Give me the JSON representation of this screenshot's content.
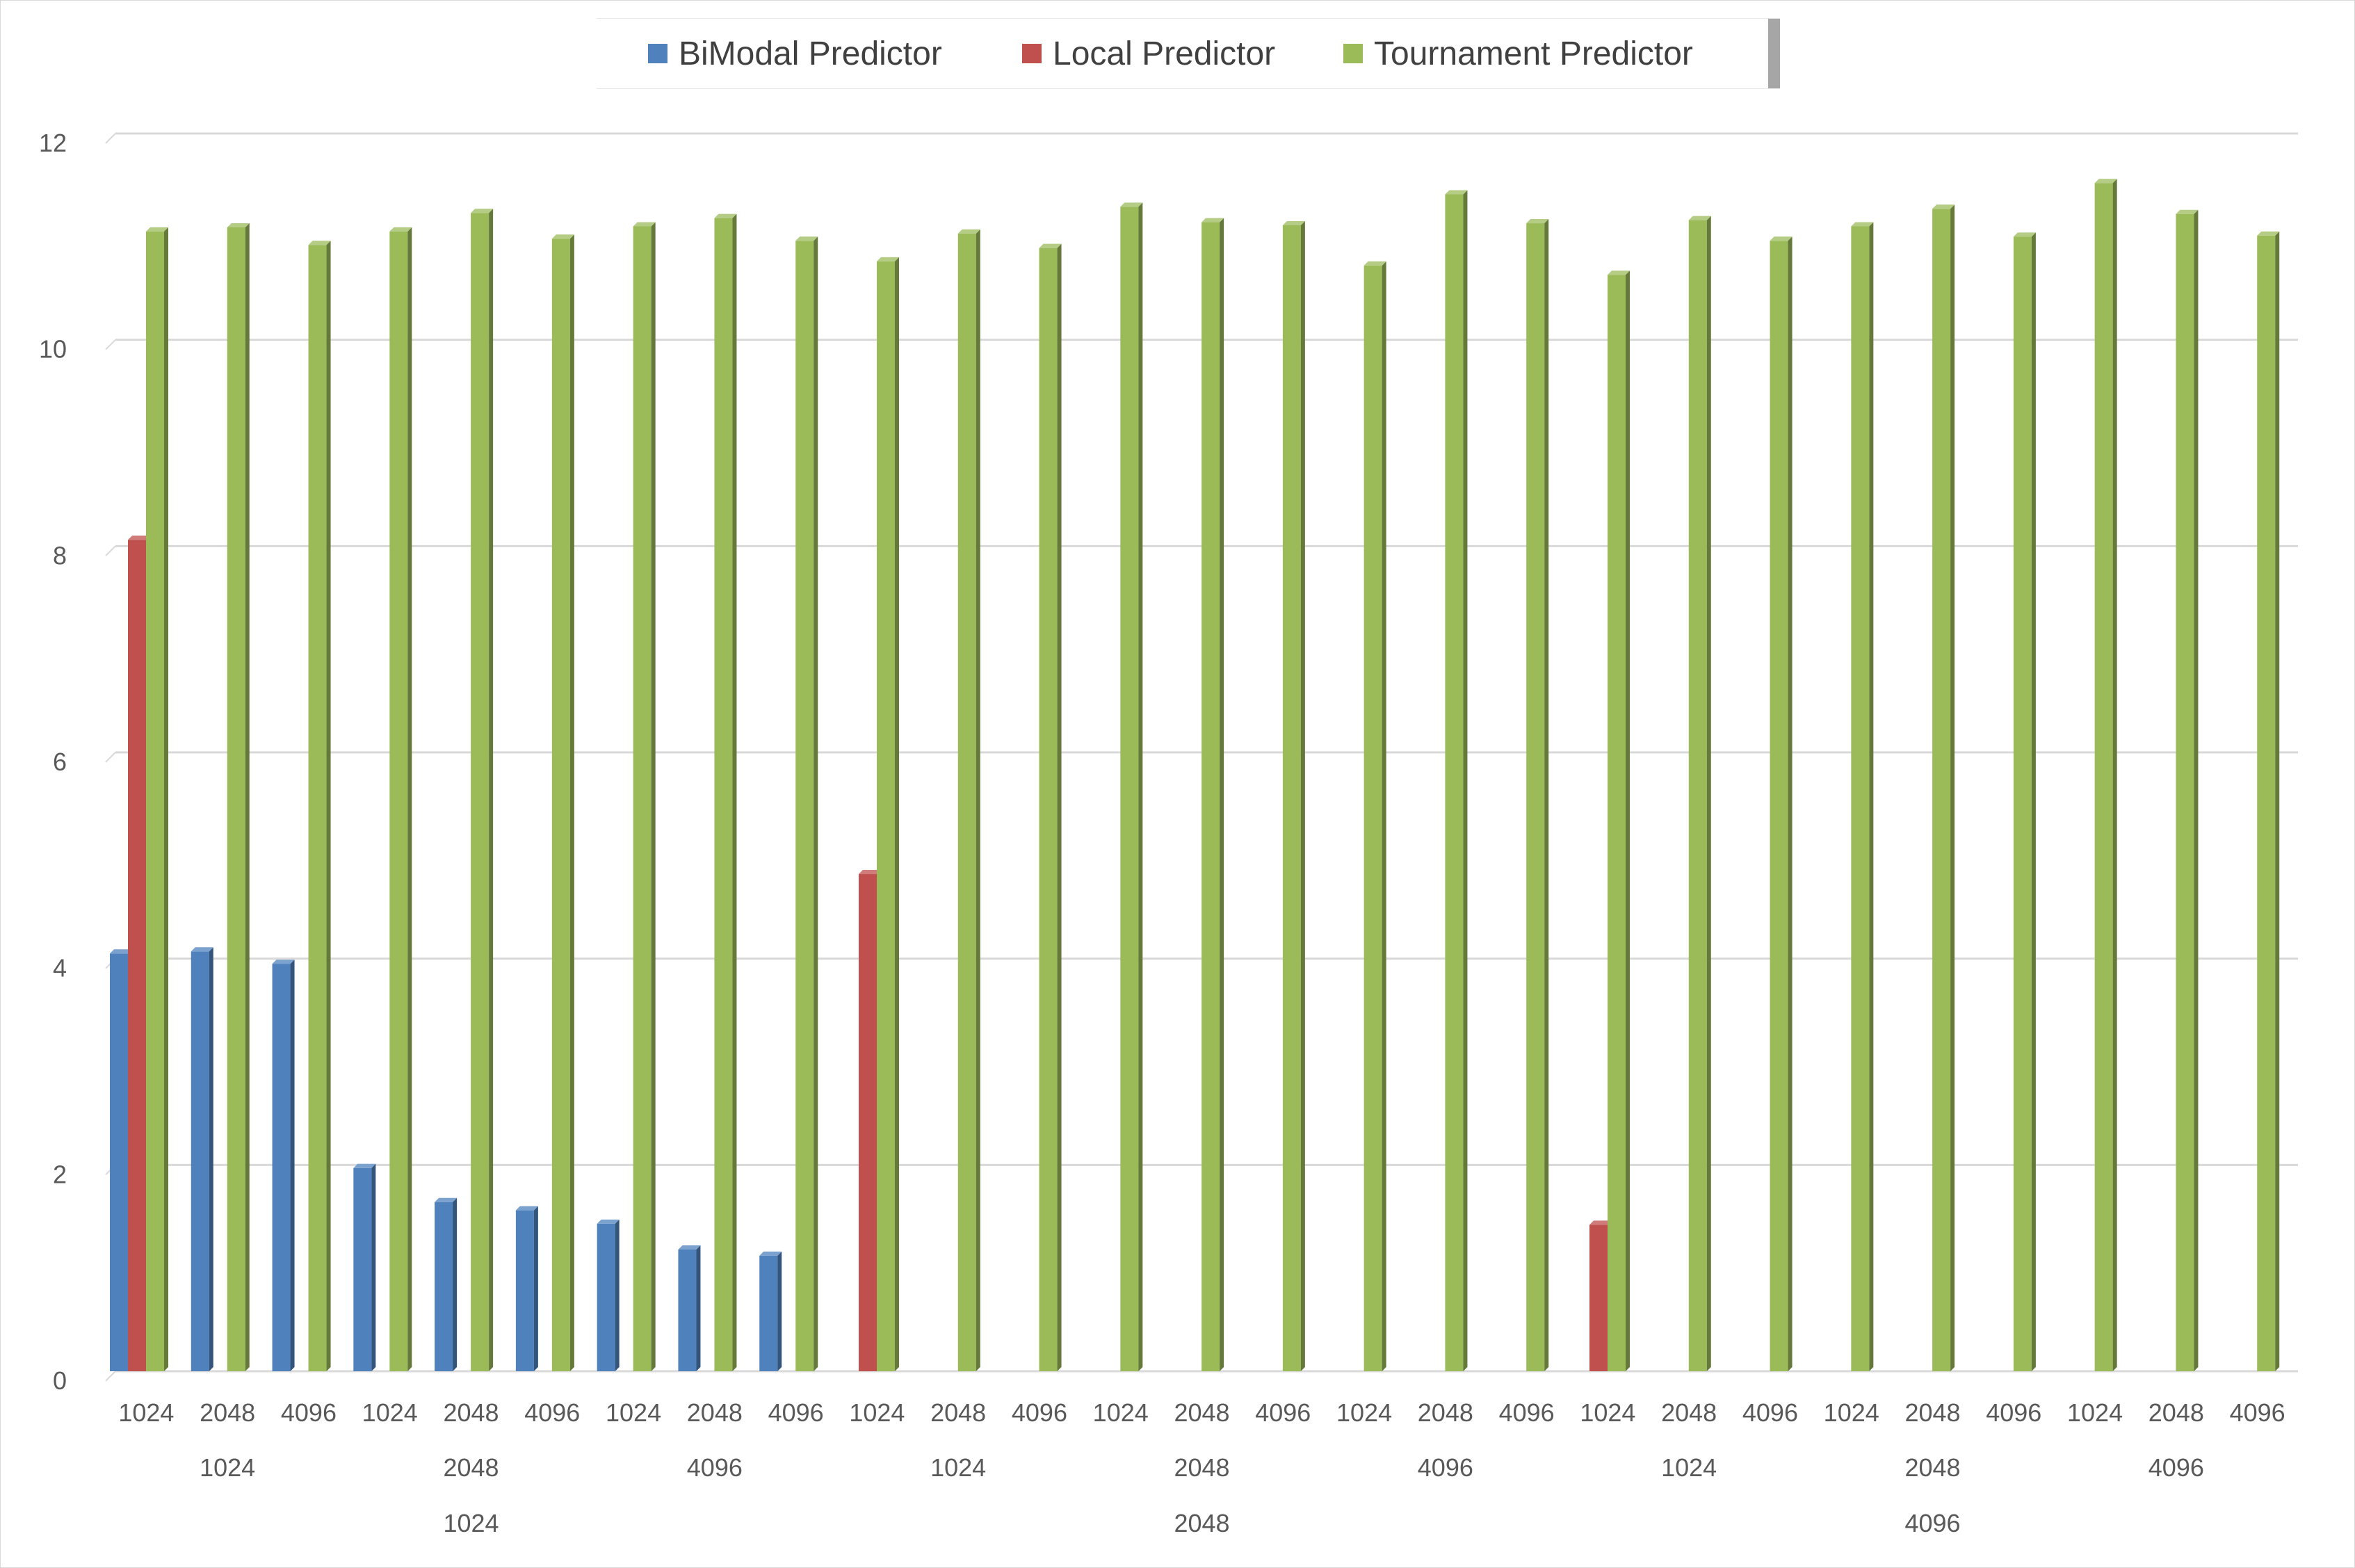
{
  "chart_data": {
    "type": "bar",
    "title": "",
    "xlabel": "",
    "ylabel": "",
    "ylim": [
      0,
      12
    ],
    "yticks": [
      0,
      2,
      4,
      6,
      8,
      10,
      12
    ],
    "grid": true,
    "legend_position": "top",
    "categories_level1": [
      "1024",
      "2048",
      "4096",
      "1024",
      "2048",
      "4096",
      "1024",
      "2048",
      "4096",
      "1024",
      "2048",
      "4096",
      "1024",
      "2048",
      "4096",
      "1024",
      "2048",
      "4096",
      "1024",
      "2048",
      "4096",
      "1024",
      "2048",
      "4096",
      "1024",
      "2048",
      "4096"
    ],
    "categories_level2": [
      "1024",
      "2048",
      "4096",
      "1024",
      "2048",
      "4096",
      "1024",
      "2048",
      "4096"
    ],
    "categories_level3": [
      "1024",
      "2048",
      "4096"
    ],
    "series": [
      {
        "name": "BiModal Predictor",
        "color": "#4f81bd",
        "values": [
          4.05,
          4.07,
          3.95,
          1.97,
          1.64,
          1.56,
          1.43,
          1.18,
          1.12,
          0,
          0,
          0,
          0,
          0,
          0,
          0,
          0,
          0,
          0,
          0,
          0,
          0,
          0,
          0,
          0,
          0,
          0
        ]
      },
      {
        "name": "Local Predictor",
        "color": "#c0504d",
        "values": [
          8.06,
          0,
          0,
          0,
          0,
          0,
          0,
          0,
          0,
          4.82,
          0,
          0,
          0,
          0,
          0,
          0,
          0,
          0,
          1.42,
          0,
          0,
          0,
          0,
          0,
          0,
          0,
          0
        ]
      },
      {
        "name": "Tournament Predictor",
        "color": "#9bbb59",
        "values": [
          11.05,
          11.09,
          10.92,
          11.05,
          11.23,
          10.98,
          11.1,
          11.18,
          10.96,
          10.76,
          11.03,
          10.89,
          11.29,
          11.14,
          11.11,
          10.72,
          11.41,
          11.13,
          10.63,
          11.16,
          10.96,
          11.1,
          11.27,
          11.0,
          11.52,
          11.22,
          11.01
        ]
      }
    ]
  }
}
